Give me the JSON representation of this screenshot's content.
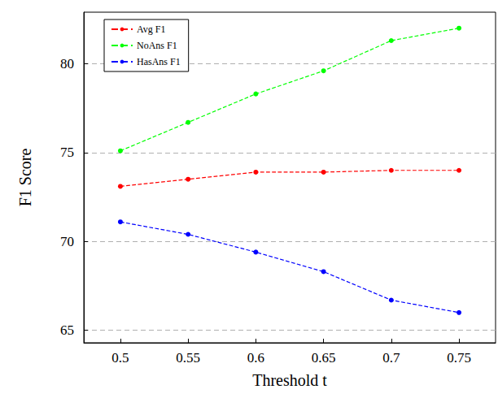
{
  "chart_data": {
    "type": "line",
    "x_label": "Threshold t",
    "y_label": "F1 Score",
    "x": [
      0.5,
      0.55,
      0.6,
      0.65,
      0.7,
      0.75
    ],
    "series": [
      {
        "name": "Avg F1",
        "color": "#ff0000",
        "values": [
          73.1,
          73.5,
          73.9,
          73.9,
          74.0,
          74.0
        ]
      },
      {
        "name": "NoAns F1",
        "color": "#00ff00",
        "values": [
          75.1,
          76.7,
          78.3,
          79.6,
          81.3,
          82.0
        ]
      },
      {
        "name": "HasAns F1",
        "color": "#0000ff",
        "values": [
          71.1,
          70.4,
          69.4,
          68.3,
          66.7,
          66.0
        ]
      }
    ],
    "xlim": [
      0.473,
      0.777
    ],
    "xticks": [
      0.5,
      0.55,
      0.6,
      0.65,
      0.7,
      0.75
    ],
    "ylim": [
      64.3,
      82.9
    ],
    "yticks": [
      65,
      70,
      75,
      80
    ],
    "grid": true,
    "legend": "upper left",
    "marker": "circle",
    "line_style": "dashed"
  }
}
